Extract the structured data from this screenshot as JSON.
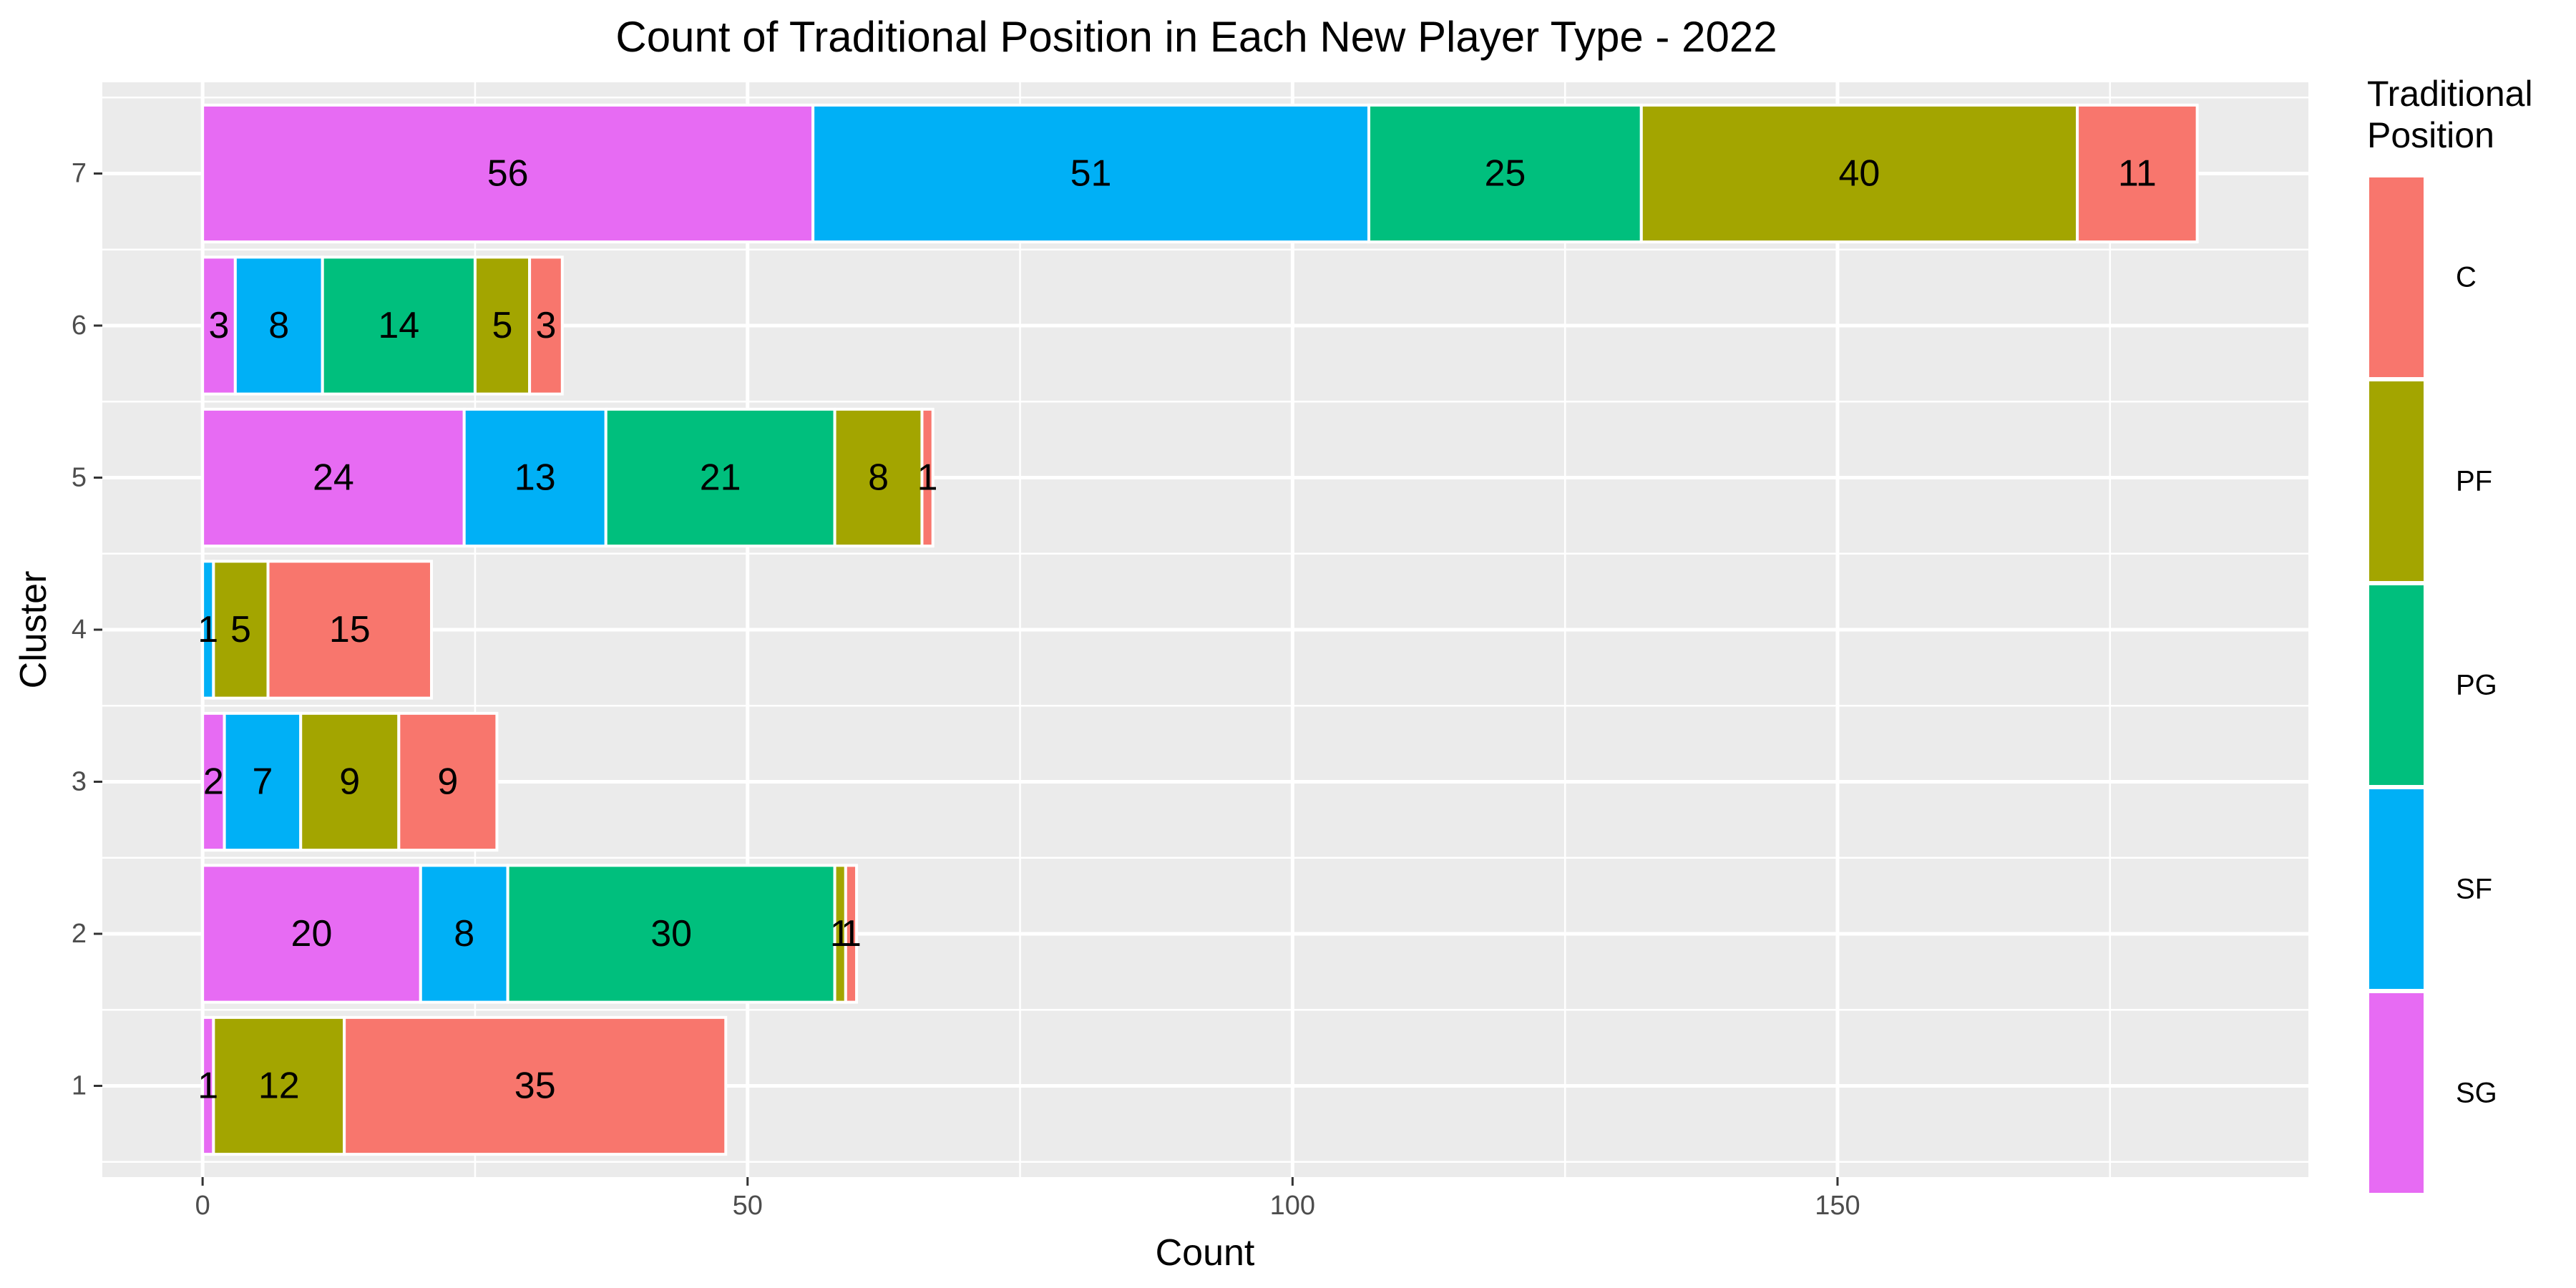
{
  "chart_data": {
    "type": "bar",
    "orientation": "horizontal",
    "stacked": true,
    "title": "Count of Traditional Position in Each New Player Type - 2022",
    "xlabel": "Count",
    "ylabel": "Cluster",
    "xlim": [
      -9.2,
      193.2
    ],
    "xticks": [
      0,
      50,
      100,
      150
    ],
    "grid": true,
    "categories": [
      "1",
      "2",
      "3",
      "4",
      "5",
      "6",
      "7"
    ],
    "series": [
      {
        "name": "SG",
        "color": "#E76BF3",
        "values": [
          1,
          20,
          2,
          0,
          24,
          3,
          56
        ]
      },
      {
        "name": "SF",
        "color": "#00B0F6",
        "values": [
          0,
          8,
          7,
          1,
          13,
          8,
          51
        ]
      },
      {
        "name": "PG",
        "color": "#00BF7D",
        "values": [
          0,
          30,
          0,
          0,
          21,
          14,
          25
        ]
      },
      {
        "name": "PF",
        "color": "#A3A500",
        "values": [
          12,
          1,
          9,
          5,
          8,
          5,
          40
        ]
      },
      {
        "name": "C",
        "color": "#F8766D",
        "values": [
          35,
          1,
          9,
          15,
          1,
          3,
          11
        ]
      }
    ],
    "legend": {
      "title_lines": [
        "Traditional",
        "Position"
      ],
      "placement": "right",
      "order": [
        "C",
        "PF",
        "PG",
        "SF",
        "SG"
      ]
    }
  }
}
